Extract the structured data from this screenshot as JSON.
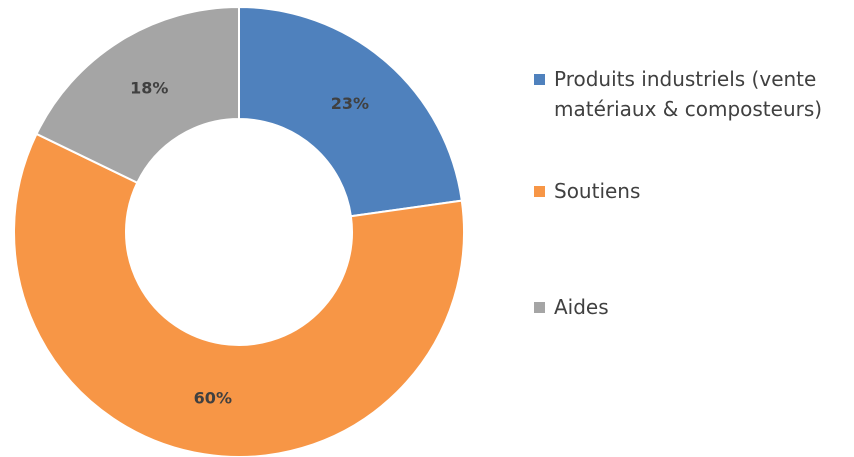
{
  "chart_data": {
    "type": "donut",
    "categories": [
      "Produits industriels (vente matériaux & composteurs)",
      "Soutiens",
      "Aides"
    ],
    "values": [
      23,
      60,
      18
    ],
    "value_labels": [
      "23%",
      "60%",
      "18%"
    ],
    "colors": [
      "#4f81bd",
      "#f79646",
      "#a5a5a5"
    ],
    "legend": "right"
  }
}
